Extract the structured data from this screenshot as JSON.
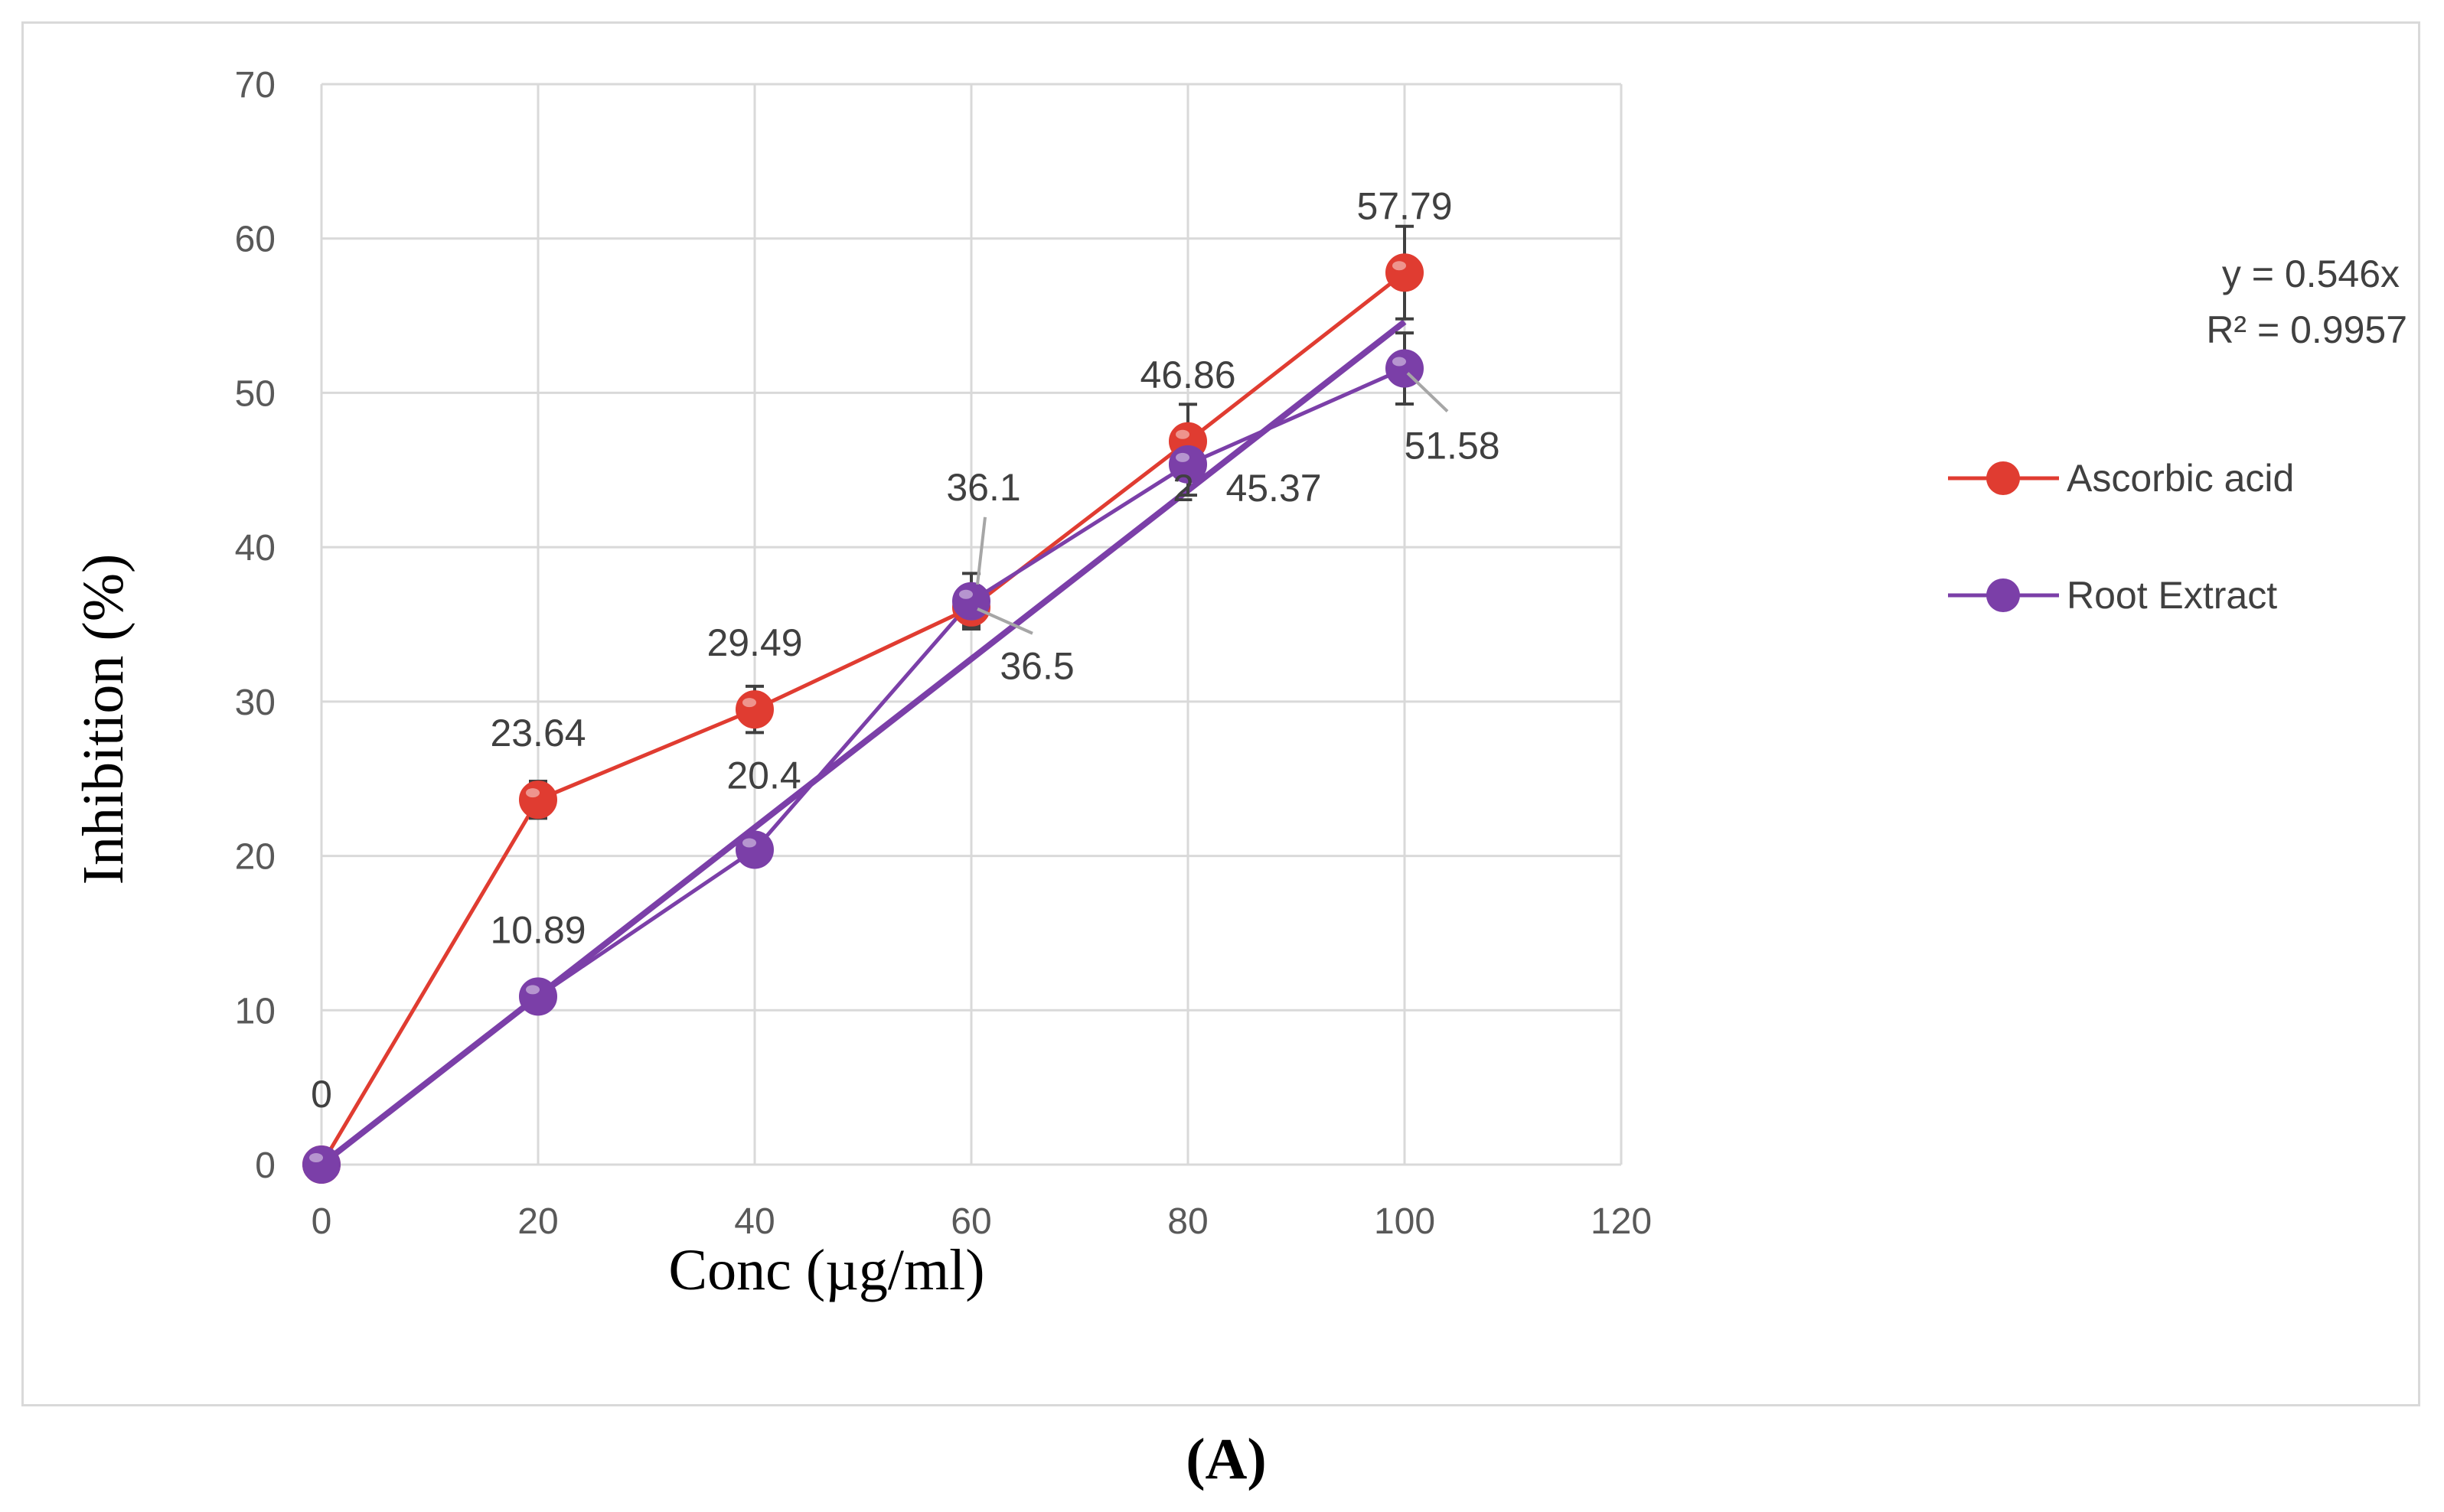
{
  "colors": {
    "ascorbic": "#e03c31",
    "root": "#7b3fa8",
    "grid": "#d9d9d9",
    "leader": "#a6a6a6"
  },
  "chart_data": {
    "type": "line",
    "title": "",
    "xlabel": "Conc (µg/ml)",
    "ylabel": "Inhibition (%)",
    "xlim": [
      0,
      120
    ],
    "ylim": [
      0,
      70
    ],
    "xticks": [
      0,
      20,
      40,
      60,
      80,
      100,
      120
    ],
    "yticks": [
      0,
      10,
      20,
      30,
      40,
      50,
      60,
      70
    ],
    "grid": true,
    "legend_position": "right",
    "series": [
      {
        "name": "Ascorbic acid",
        "x": [
          0,
          20,
          40,
          60,
          80,
          100
        ],
        "values": [
          0,
          23.64,
          29.49,
          36.1,
          46.86,
          57.79
        ],
        "labels": [
          "0",
          "23.64",
          "29.49",
          "36.1",
          "46.86",
          "57.79"
        ],
        "error": [
          0,
          1.2,
          1.5,
          1.2,
          2.4,
          3.0
        ]
      },
      {
        "name": "Root Extract",
        "x": [
          0,
          20,
          40,
          60,
          80,
          100
        ],
        "values": [
          0,
          10.89,
          20.4,
          36.5,
          45.37,
          51.58
        ],
        "labels": [
          "",
          "10.89",
          "20.4",
          "36.5",
          "45.37",
          "51.58"
        ],
        "error": [
          0,
          0.5,
          0.6,
          1.8,
          2.0,
          2.3
        ]
      }
    ],
    "trendline": {
      "series": "Root Extract",
      "slope": 0.546,
      "equation": "y = 0.546x",
      "r2": "R² = 0.9957"
    },
    "extra_label": "2"
  },
  "caption": "(A)"
}
